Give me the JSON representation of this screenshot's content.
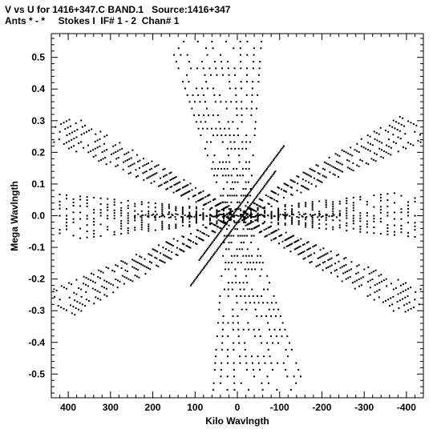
{
  "header": {
    "line1": "V vs U for 1416+347.C BAND.1   Source:1416+347",
    "line2": "Ants * - *     Stokes I  IF# 1 - 2  Chan# 1"
  },
  "chart_data": {
    "type": "scatter",
    "xlabel": "Kilo Wavlngth",
    "ylabel": "Mega Wavlngth",
    "xlim": [
      440,
      -440
    ],
    "ylim": [
      -0.575,
      0.575
    ],
    "x_ticks": [
      400,
      300,
      200,
      100,
      0,
      -100,
      -200,
      -300,
      -400
    ],
    "x_tick_labels": [
      "400",
      "300",
      "200",
      "100",
      "0",
      "-100",
      "-200",
      "-300",
      "-400"
    ],
    "y_ticks": [
      0.5,
      0.4,
      0.3,
      0.2,
      0.1,
      0.0,
      -0.1,
      -0.2,
      -0.3,
      -0.4,
      -0.5
    ],
    "y_tick_labels": [
      "0.5",
      "0.4",
      "0.3",
      "0.2",
      "0.1",
      "0.0",
      "-0.1",
      "-0.2",
      "-0.3",
      "-0.4",
      "-0.5"
    ],
    "grid": false,
    "marker_color": "#000000",
    "coverage": {
      "description": "six-pointed star uv-coverage, point-symmetric about the origin",
      "arms": [
        {
          "direction": "horizontal",
          "u_extent": [
            -420,
            420
          ],
          "v_spread": 0.28
        },
        {
          "direction": "diagonal",
          "u_extent": [
            -450,
            430
          ],
          "v_extent": [
            -0.28,
            0.28
          ]
        },
        {
          "direction": "anti-diagonal",
          "u_extent": [
            -450,
            430
          ],
          "v_extent": [
            -0.28,
            0.28
          ]
        },
        {
          "direction": "vertical",
          "u_extent": [
            -130,
            130
          ],
          "v_extent": [
            -0.55,
            0.55
          ]
        }
      ],
      "dense_ridge": {
        "u_from": 110,
        "v_from": -0.22,
        "u_to": -90,
        "v_to": 0.14
      }
    }
  }
}
